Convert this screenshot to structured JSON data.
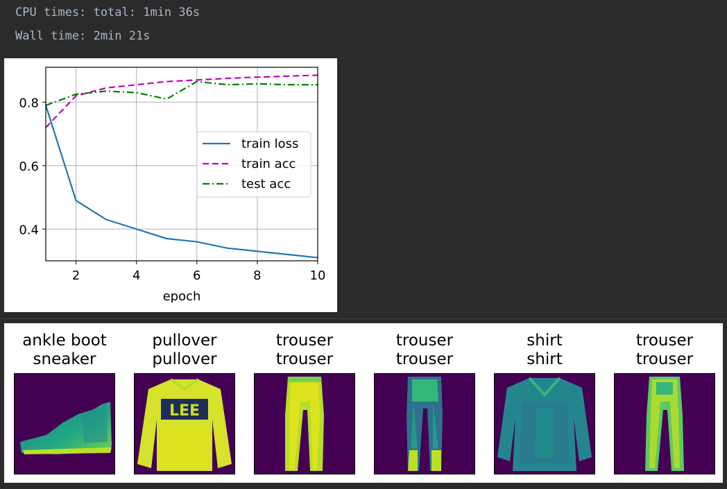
{
  "console": {
    "cpu_times": "CPU times: total: 1min 36s",
    "wall_time": "Wall time: 2min 21s"
  },
  "colors": {
    "train_loss": "#1f77b4",
    "train_acc": "#bf00bf",
    "test_acc": "#007f00",
    "viridis_bg": "#440154",
    "console_bg": "#2b2b2b"
  },
  "chart_data": {
    "type": "line",
    "title": "",
    "xlabel": "epoch",
    "ylabel": "",
    "xlim": [
      1,
      10
    ],
    "ylim": [
      0.3,
      0.91
    ],
    "xticks": [
      2,
      4,
      6,
      8,
      10
    ],
    "yticks": [
      0.4,
      0.6,
      0.8
    ],
    "xtick_labels": [
      "2",
      "4",
      "6",
      "8",
      "10"
    ],
    "ytick_labels": [
      "0.4",
      "0.6",
      "0.8"
    ],
    "grid": true,
    "legend_position": "center-right",
    "x": [
      1,
      2,
      3,
      4,
      5,
      6,
      7,
      8,
      9,
      10
    ],
    "series": [
      {
        "name": "train loss",
        "style": "solid",
        "values": [
          0.79,
          0.49,
          0.43,
          0.4,
          0.37,
          0.36,
          0.34,
          0.33,
          0.32,
          0.31
        ]
      },
      {
        "name": "train acc",
        "style": "dashed",
        "values": [
          0.72,
          0.82,
          0.845,
          0.855,
          0.865,
          0.87,
          0.875,
          0.879,
          0.882,
          0.885
        ]
      },
      {
        "name": "test acc",
        "style": "dashdot",
        "values": [
          0.79,
          0.825,
          0.835,
          0.83,
          0.81,
          0.865,
          0.855,
          0.858,
          0.855,
          0.855
        ]
      }
    ]
  },
  "samples": [
    {
      "true_label": "ankle boot",
      "pred_label": "sneaker",
      "icon": "shoe"
    },
    {
      "true_label": "pullover",
      "pred_label": "pullover",
      "icon": "sweater"
    },
    {
      "true_label": "trouser",
      "pred_label": "trouser",
      "icon": "trouser"
    },
    {
      "true_label": "trouser",
      "pred_label": "trouser",
      "icon": "trouser"
    },
    {
      "true_label": "shirt",
      "pred_label": "shirt",
      "icon": "shirt"
    },
    {
      "true_label": "trouser",
      "pred_label": "trouser",
      "icon": "trouser"
    }
  ]
}
